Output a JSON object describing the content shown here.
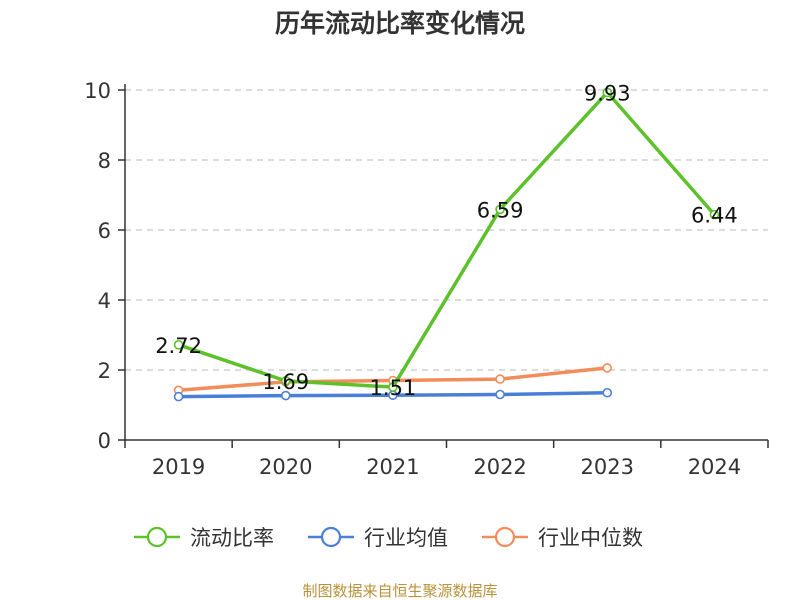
{
  "chart_data": {
    "type": "line",
    "title": "历年流动比率变化情况",
    "x": [
      "2019",
      "2020",
      "2021",
      "2022",
      "2023",
      "2024"
    ],
    "ylim": [
      0,
      10
    ],
    "yticks": [
      0,
      2,
      4,
      6,
      8,
      10
    ],
    "grid": true,
    "legend_position": "bottom",
    "series": [
      {
        "name": "流动比率",
        "color": "#5cc12a",
        "values": [
          2.72,
          1.69,
          1.51,
          6.59,
          9.93,
          6.44
        ],
        "labels": [
          "2.72",
          "1.69",
          "1.51",
          "6.59",
          "9.93",
          "6.44"
        ]
      },
      {
        "name": "行业均值",
        "color": "#4a7fd8",
        "values": [
          1.24,
          1.27,
          1.28,
          1.3,
          1.35,
          null
        ]
      },
      {
        "name": "行业中位数",
        "color": "#f28c5a",
        "values": [
          1.42,
          1.66,
          1.7,
          1.74,
          2.06,
          null
        ]
      }
    ]
  },
  "footer": {
    "source": "制图数据来自恒生聚源数据库"
  }
}
